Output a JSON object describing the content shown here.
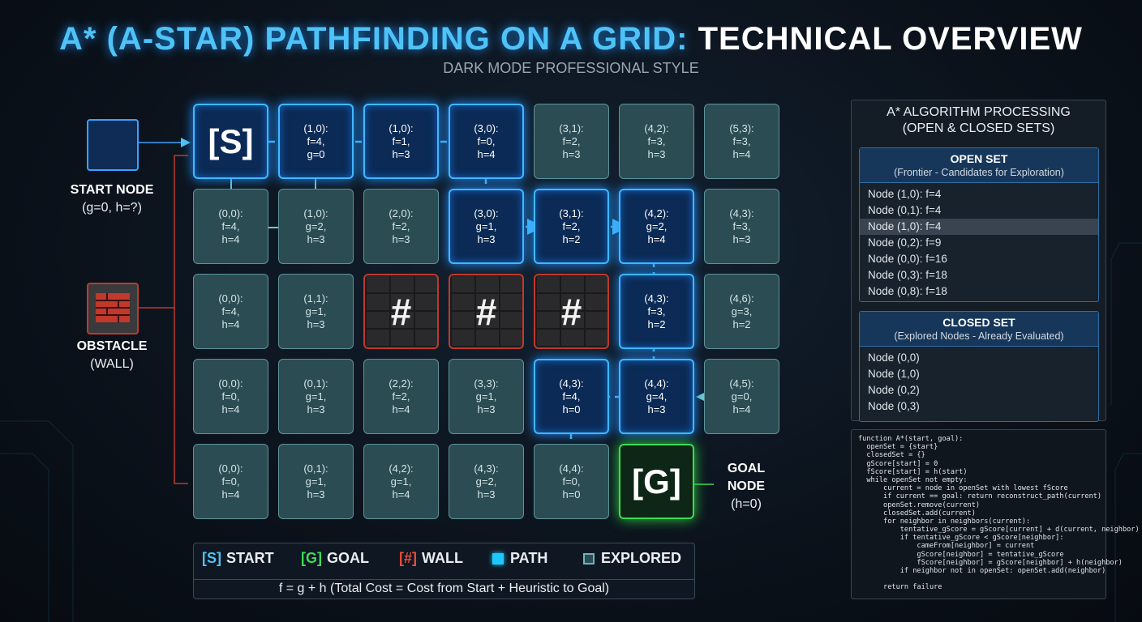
{
  "header": {
    "title_part1": "A* (A-STAR) PATHFINDING ON A GRID:",
    "title_part2": "TECHNICAL OVERVIEW",
    "subtitle": "DARK MODE PROFESSIONAL STYLE"
  },
  "side_labels": {
    "start": {
      "title": "START NODE",
      "detail": "(g=0, h=?)"
    },
    "obstacle": {
      "title": "OBSTACLE",
      "detail": "(WALL)"
    },
    "goal": {
      "line1": "GOAL",
      "line2": "NODE",
      "detail": "(h=0)"
    }
  },
  "grid": {
    "rows": [
      {
        "cells": [
          {
            "kind": "start",
            "lines": [
              "[S]"
            ]
          },
          {
            "kind": "path",
            "lines": [
              "(1,0):",
              "f=4,",
              "g=0"
            ]
          },
          {
            "kind": "path",
            "lines": [
              "(1,0):",
              "f=1,",
              "h=3"
            ]
          },
          {
            "kind": "path",
            "lines": [
              "(3,0):",
              "f=0,",
              "h=4"
            ]
          },
          {
            "kind": "explored",
            "lines": [
              "(3,1):",
              "f=2,",
              "h=3"
            ]
          },
          {
            "kind": "explored",
            "lines": [
              "(4,2):",
              "f=3,",
              "h=3"
            ]
          },
          {
            "kind": "explored",
            "lines": [
              "(5,3):",
              "f=3,",
              "h=4"
            ]
          }
        ]
      },
      {
        "cells": [
          {
            "kind": "explored",
            "lines": [
              "(0,0):",
              "f=4,",
              "h=4"
            ]
          },
          {
            "kind": "explored",
            "lines": [
              "(1,0):",
              "g=2,",
              "h=3"
            ]
          },
          {
            "kind": "explored",
            "lines": [
              "(2,0):",
              "f=2,",
              "h=3"
            ]
          },
          {
            "kind": "path",
            "lines": [
              "(3,0):",
              "g=1,",
              "h=3"
            ]
          },
          {
            "kind": "path",
            "lines": [
              "(3,1):",
              "f=2,",
              "h=2"
            ]
          },
          {
            "kind": "path",
            "lines": [
              "(4,2):",
              "g=2,",
              "h=4"
            ]
          },
          {
            "kind": "explored",
            "lines": [
              "(4,3):",
              "f=3,",
              "h=3"
            ]
          }
        ]
      },
      {
        "cells": [
          {
            "kind": "explored",
            "lines": [
              "(0,0):",
              "f=4,",
              "h=4"
            ]
          },
          {
            "kind": "explored",
            "lines": [
              "(1,1):",
              "g=1,",
              "h=3"
            ]
          },
          {
            "kind": "wall",
            "lines": [
              "#"
            ]
          },
          {
            "kind": "wall",
            "lines": [
              "#"
            ]
          },
          {
            "kind": "wall",
            "lines": [
              "#"
            ]
          },
          {
            "kind": "path",
            "lines": [
              "(4,3):",
              "f=3,",
              "h=2"
            ]
          },
          {
            "kind": "explored",
            "lines": [
              "(4,6):",
              "g=3,",
              "h=2"
            ]
          }
        ]
      },
      {
        "cells": [
          {
            "kind": "explored",
            "lines": [
              "(0,0):",
              "f=0,",
              "h=4"
            ]
          },
          {
            "kind": "explored",
            "lines": [
              "(0,1):",
              "g=1,",
              "h=3"
            ]
          },
          {
            "kind": "explored",
            "lines": [
              "(2,2):",
              "f=2,",
              "h=4"
            ]
          },
          {
            "kind": "explored",
            "lines": [
              "(3,3):",
              "g=1,",
              "h=3"
            ]
          },
          {
            "kind": "path",
            "lines": [
              "(4,3):",
              "f=4,",
              "h=0"
            ]
          },
          {
            "kind": "path",
            "lines": [
              "(4,4):",
              "g=4,",
              "h=3"
            ]
          },
          {
            "kind": "explored",
            "lines": [
              "(4,5):",
              "g=0,",
              "h=4"
            ]
          }
        ]
      },
      {
        "cells": [
          {
            "kind": "explored",
            "lines": [
              "(0,0):",
              "f=0,",
              "h=4"
            ]
          },
          {
            "kind": "explored",
            "lines": [
              "(0,1):",
              "g=1,",
              "h=3"
            ]
          },
          {
            "kind": "explored",
            "lines": [
              "(4,2):",
              "g=1,",
              "h=4"
            ]
          },
          {
            "kind": "explored",
            "lines": [
              "(4,3):",
              "g=2,",
              "h=3"
            ]
          },
          {
            "kind": "explored",
            "lines": [
              "(4,4):",
              "f=0,",
              "h=0"
            ]
          },
          {
            "kind": "goal",
            "lines": [
              "[G]"
            ]
          }
        ]
      }
    ]
  },
  "legend": {
    "items": [
      {
        "symbol": "[S]",
        "label": "START"
      },
      {
        "symbol": "[G]",
        "label": "GOAL"
      },
      {
        "symbol": "[#]",
        "label": "WALL"
      },
      {
        "label": "PATH"
      },
      {
        "label": "EXPLORED"
      }
    ],
    "formula": "f = g + h (Total Cost = Cost from Start + Heuristic to Goal)"
  },
  "panel": {
    "title": "A* ALGORITHM PROCESSING",
    "subtitle": "(OPEN & CLOSED SETS)",
    "open_set": {
      "title": "OPEN SET",
      "subtitle": "(Frontier - Candidates for Exploration)",
      "items": [
        "Node (1,0): f=4",
        "Node (0,1): f=4",
        "Node (1,0): f=4",
        "Node (0,2): f=9",
        "Node (0,0): f=16",
        "Node (0,3): f=18",
        "Node (0,8): f=18"
      ]
    },
    "closed_set": {
      "title": "CLOSED SET",
      "subtitle": "(Explored Nodes - Already Evaluated)",
      "items": [
        "Node (0,0)",
        "Node (1,0)",
        "Node (0,2)",
        "Node (0,3)"
      ]
    }
  },
  "code": {
    "lines": [
      "function A*(start, goal):",
      "  openSet = {start}",
      "  closedSet = {}",
      "  gScore[start] = 0",
      "  fScore[start] = h(start)",
      "  while openSet not empty:",
      "      current = node in openSet with lowest fScore",
      "      if current == goal: return reconstruct_path(current)",
      "      openSet.remove(current)",
      "      closedSet.add(current)",
      "      for neighbor in neighbors(current):",
      "          tentative_gScore = gScore[current] + d(current, neighbor)",
      "          if tentative_gScore < gScore[neighbor]:",
      "              cameFrom[neighbor] = current",
      "              gScore[neighbor] = tentative_gScore",
      "              fScore[neighbor] = gScore[neighbor] + h(neighbor)",
      "          if neighbor not in openSet: openSet.add(neighbor)",
      "",
      "      return failure"
    ]
  }
}
